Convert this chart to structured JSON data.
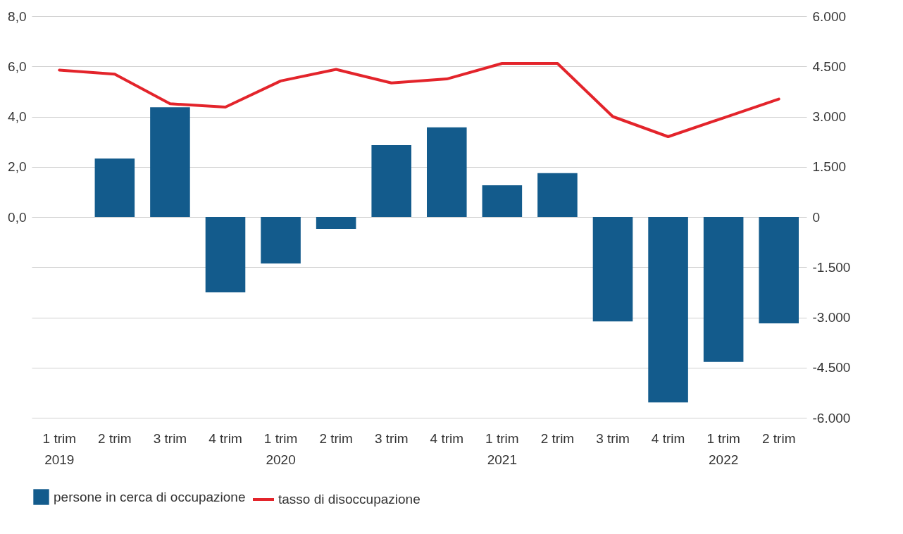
{
  "chart_data": {
    "type": "bar",
    "categories": [
      "1 trim\n2019",
      "2 trim",
      "3 trim",
      "4 trim",
      "1 trim\n2020",
      "2 trim",
      "3 trim",
      "4 trim",
      "1 trim\n2021",
      "2 trim",
      "3 trim",
      "4 trim",
      "1 trim\n2022",
      "2 trim"
    ],
    "series": [
      {
        "name": "persone in cerca di occupazione",
        "axis": "y2",
        "color": "#135b8c",
        "values": [
          0,
          1750,
          3280,
          -2250,
          -1390,
          -360,
          2150,
          2680,
          950,
          1310,
          -3120,
          -5540,
          -4330,
          -3180
        ]
      },
      {
        "name": "tasso di disoccupazione",
        "type": "line",
        "color": "#e3242b",
        "values": [
          5.85,
          5.69,
          4.51,
          4.38,
          5.42,
          5.88,
          5.34,
          5.5,
          6.12,
          6.12,
          4.0,
          3.2,
          3.95,
          4.7
        ]
      }
    ],
    "ylim": [
      -8,
      8
    ],
    "yticks": [
      {
        "value": 8,
        "label": "8,0"
      },
      {
        "value": 6,
        "label": "6,0"
      },
      {
        "value": 4,
        "label": "4,0"
      },
      {
        "value": 2,
        "label": "2,0"
      },
      {
        "value": 0,
        "label": "0,0"
      },
      {
        "value": -2,
        "label": null
      },
      {
        "value": -4,
        "label": null
      },
      {
        "value": -6,
        "label": null
      },
      {
        "value": -8,
        "label": null
      }
    ],
    "y2lim": [
      -6000,
      6000
    ],
    "y2ticks": [
      {
        "value": 6000,
        "label": "6.000"
      },
      {
        "value": 4500,
        "label": "4.500"
      },
      {
        "value": 3000,
        "label": "3.000"
      },
      {
        "value": 1500,
        "label": "1.500"
      },
      0,
      {
        "value": -1500,
        "label": "-1.500"
      },
      {
        "value": -3000,
        "label": "-3.000"
      },
      {
        "value": -4500,
        "label": "-4.500"
      },
      {
        "value": -6000,
        "label": "-6.000"
      }
    ],
    "grid": "y",
    "legend": "bottom",
    "marker": "none",
    "line_style": "solid"
  }
}
